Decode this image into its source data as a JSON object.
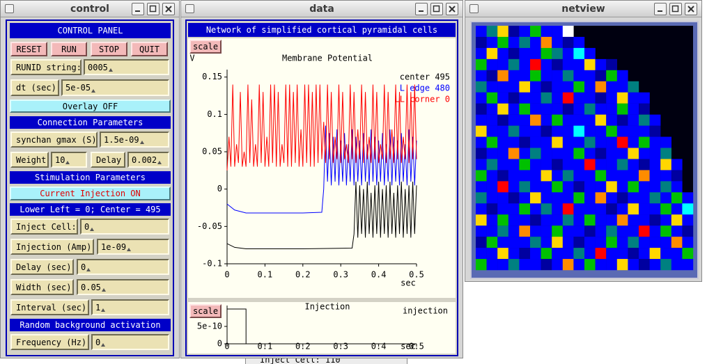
{
  "windows": {
    "control": {
      "title": "control"
    },
    "data": {
      "title": "data"
    },
    "netview": {
      "title": "netview"
    }
  },
  "control_panel": {
    "title": "CONTROL PANEL",
    "buttons": [
      "RESET",
      "RUN",
      "STOP",
      "QUIT"
    ],
    "runid": {
      "label": "RUNID string:",
      "value": "0005"
    },
    "dt": {
      "label": "dt (sec)",
      "value": "5e-05"
    },
    "overlay": "Overlay OFF",
    "connection": {
      "heading": "Connection Parameters",
      "gmax": {
        "label": "synchan gmax (S)",
        "value": "1.5e-09"
      },
      "weight": {
        "label": "Weight",
        "value": "10"
      },
      "delay": {
        "label": "Delay",
        "value": "0.002"
      }
    },
    "stimulation": {
      "heading": "Stimulation Parameters",
      "injection_toggle": "Current Injection ON",
      "note": "Lower Left = 0; Center = 495",
      "inject_cell": {
        "label": "Inject Cell:",
        "value": "0"
      },
      "injection": {
        "label": "Injection (Amp)",
        "value": "1e-09"
      },
      "delay": {
        "label": "Delay (sec)",
        "value": "0"
      },
      "width": {
        "label": "Width (sec)",
        "value": "0.05"
      },
      "interval": {
        "label": "Interval (sec)",
        "value": "1"
      }
    },
    "background": {
      "heading": "Random background activation",
      "frequency": {
        "label": "Frequency (Hz)",
        "value": "0"
      }
    }
  },
  "data_window": {
    "header": "Network of simplified cortical pyramidal cells",
    "scale_buttons": [
      "scale",
      "scale"
    ]
  },
  "chart_data": [
    {
      "type": "line",
      "title": "Membrane Potential",
      "ylabel": "V",
      "xlabel": "sec",
      "xlim": [
        0,
        0.5
      ],
      "ylim": [
        -0.1,
        0.16
      ],
      "xticks": [
        0,
        0.1,
        0.2,
        0.3,
        0.4,
        0.5
      ],
      "yticks": [
        -0.1,
        -0.05,
        0,
        0.05,
        0.1,
        0.15
      ],
      "series": [
        {
          "name": "center 495",
          "color": "#000000",
          "x": [
            0,
            0.02,
            0.05,
            0.1,
            0.2,
            0.33,
            0.335,
            0.34,
            0.345,
            0.35,
            0.355,
            0.36,
            0.365,
            0.37,
            0.375,
            0.38,
            0.385,
            0.39,
            0.395,
            0.4,
            0.405,
            0.41,
            0.415,
            0.42,
            0.425,
            0.43,
            0.435,
            0.44,
            0.445,
            0.45,
            0.455,
            0.46,
            0.465,
            0.47,
            0.475,
            0.48,
            0.485,
            0.49,
            0.495,
            0.5
          ],
          "values": [
            -0.073,
            -0.078,
            -0.08,
            -0.08,
            -0.08,
            -0.079,
            -0.06,
            0.01,
            -0.065,
            0.005,
            -0.06,
            0,
            -0.065,
            0.01,
            -0.06,
            -0.005,
            -0.065,
            0.005,
            -0.06,
            0.01,
            -0.065,
            0,
            -0.06,
            0.005,
            -0.065,
            0.01,
            -0.06,
            -0.005,
            -0.065,
            0.005,
            -0.06,
            0.01,
            -0.065,
            0,
            -0.06,
            0.005,
            -0.065,
            0.01,
            -0.06,
            0.005
          ]
        },
        {
          "name": "L edge 480",
          "color": "#0000ff",
          "x": [
            0,
            0.02,
            0.05,
            0.1,
            0.2,
            0.25,
            0.255,
            0.26,
            0.265,
            0.27,
            0.275,
            0.28,
            0.285,
            0.29,
            0.295,
            0.3,
            0.305,
            0.31,
            0.315,
            0.32,
            0.325,
            0.33,
            0.335,
            0.34,
            0.345,
            0.35,
            0.355,
            0.36,
            0.365,
            0.37,
            0.375,
            0.38,
            0.385,
            0.39,
            0.395,
            0.4,
            0.405,
            0.41,
            0.415,
            0.42,
            0.425,
            0.43,
            0.435,
            0.44,
            0.445,
            0.45,
            0.455,
            0.46,
            0.465,
            0.47,
            0.475,
            0.48,
            0.485,
            0.49,
            0.495,
            0.5
          ],
          "values": [
            -0.02,
            -0.028,
            -0.032,
            -0.032,
            -0.032,
            -0.031,
            0,
            0.085,
            0.01,
            0.075,
            0.005,
            0.07,
            0.01,
            0.08,
            0.005,
            0.065,
            0.01,
            0.075,
            0.005,
            0.06,
            0.01,
            0.08,
            0.005,
            0.07,
            0.01,
            0.065,
            0.005,
            0.075,
            0.01,
            0.06,
            0.005,
            0.08,
            0.01,
            0.07,
            0.005,
            0.065,
            0.01,
            0.075,
            0.005,
            0.06,
            0.01,
            0.08,
            0.005,
            0.07,
            0.01,
            0.065,
            0.005,
            0.075,
            0.01,
            0.06,
            0.005,
            0.08,
            0.01,
            0.07,
            0.005,
            0.065
          ]
        },
        {
          "name": "LL corner 0",
          "color": "#ff0000",
          "x": [
            0,
            0.005,
            0.01,
            0.015,
            0.02,
            0.025,
            0.03,
            0.035,
            0.04,
            0.045,
            0.05,
            0.055,
            0.06,
            0.065,
            0.07,
            0.075,
            0.08,
            0.085,
            0.09,
            0.095,
            0.1,
            0.105,
            0.11,
            0.115,
            0.12,
            0.125,
            0.13,
            0.135,
            0.14,
            0.145,
            0.15,
            0.155,
            0.16,
            0.165,
            0.17,
            0.175,
            0.18,
            0.185,
            0.19,
            0.195,
            0.2,
            0.205,
            0.21,
            0.215,
            0.22,
            0.225,
            0.23,
            0.235,
            0.24,
            0.245,
            0.25,
            0.255,
            0.26,
            0.265,
            0.27,
            0.275,
            0.28,
            0.285,
            0.29,
            0.295,
            0.3,
            0.305,
            0.31,
            0.315,
            0.32,
            0.325,
            0.33,
            0.335,
            0.34,
            0.345,
            0.35,
            0.355,
            0.36,
            0.365,
            0.37,
            0.375,
            0.38,
            0.385,
            0.39,
            0.395,
            0.4,
            0.405,
            0.41,
            0.415,
            0.42,
            0.425,
            0.43,
            0.435,
            0.44,
            0.445,
            0.45,
            0.455,
            0.46,
            0.465,
            0.47,
            0.475,
            0.48,
            0.485,
            0.49,
            0.495,
            0.5
          ],
          "values": [
            0.025,
            0.07,
            0.03,
            0.14,
            0.03,
            0.06,
            0.035,
            0.13,
            0.03,
            0.05,
            0.03,
            0.14,
            0.035,
            0.12,
            0.03,
            0.06,
            0.03,
            0.14,
            0.035,
            0.13,
            0.03,
            0.07,
            0.03,
            0.14,
            0.035,
            0.14,
            0.03,
            0.13,
            0.03,
            0.06,
            0.035,
            0.14,
            0.03,
            0.14,
            0.03,
            0.13,
            0.035,
            0.14,
            0.03,
            0.08,
            0.03,
            0.14,
            0.035,
            0.14,
            0.03,
            0.13,
            0.03,
            0.14,
            0.035,
            0.14,
            0.04,
            0.09,
            0.035,
            0.14,
            0.04,
            0.13,
            0.035,
            0.07,
            0.04,
            0.14,
            0.035,
            0.13,
            0.04,
            0.06,
            0.035,
            0.14,
            0.04,
            0.13,
            0.035,
            0.08,
            0.04,
            0.14,
            0.035,
            0.13,
            0.04,
            0.07,
            0.035,
            0.14,
            0.04,
            0.13,
            0.035,
            0.06,
            0.04,
            0.14,
            0.035,
            0.13,
            0.04,
            0.08,
            0.035,
            0.14,
            0.04,
            0.13,
            0.035,
            0.07,
            0.04,
            0.14,
            0.035,
            0.13,
            0.04,
            0.14,
            0.04
          ]
        }
      ]
    },
    {
      "type": "line",
      "title": "Injection",
      "xlabel": "sec",
      "xlim": [
        0,
        0.5
      ],
      "ylim": [
        0,
        1.1e-09
      ],
      "xticks": [
        0,
        0.1,
        0.2,
        0.3,
        0.4,
        0.5
      ],
      "yticks": [
        0,
        {
          "value": 5e-10,
          "label": "5e-10"
        }
      ],
      "series": [
        {
          "name": "injection",
          "color": "#000000",
          "x": [
            0,
            0,
            0.05,
            0.05,
            0.5
          ],
          "values": [
            0,
            1e-09,
            1e-09,
            0,
            0
          ]
        }
      ]
    }
  ],
  "netview": {
    "palette": [
      "#0000ff",
      "#0000a0",
      "#00c000",
      "#008080",
      "#ffd700",
      "#ff8c00",
      "#ff0000",
      "#00ffff",
      "#ffffff"
    ],
    "cells": [
      [
        0,
        3,
        4,
        1,
        0,
        2,
        0,
        0,
        8
      ],
      [
        1,
        0,
        2,
        0,
        3,
        0,
        5,
        0,
        1,
        0
      ],
      [
        0,
        4,
        0,
        1,
        0,
        0,
        2,
        3,
        0,
        7,
        0
      ],
      [
        2,
        0,
        0,
        3,
        0,
        6,
        0,
        1,
        0,
        0,
        4,
        0,
        1
      ],
      [
        0,
        1,
        5,
        0,
        0,
        2,
        0,
        0,
        3,
        0,
        0,
        1,
        2,
        0
      ],
      [
        3,
        0,
        0,
        0,
        4,
        0,
        1,
        0,
        0,
        2,
        0,
        5,
        0,
        0,
        3
      ],
      [
        0,
        2,
        0,
        1,
        0,
        0,
        3,
        0,
        6,
        0,
        0,
        1,
        0,
        4,
        0,
        0
      ],
      [
        1,
        0,
        4,
        0,
        2,
        0,
        0,
        0,
        1,
        0,
        3,
        0,
        0,
        2,
        0,
        1
      ],
      [
        0,
        0,
        1,
        0,
        0,
        5,
        0,
        2,
        0,
        0,
        0,
        4,
        0,
        1,
        0,
        3,
        0
      ],
      [
        4,
        0,
        0,
        3,
        0,
        0,
        1,
        0,
        0,
        7,
        0,
        0,
        2,
        0,
        0,
        0,
        1
      ],
      [
        0,
        2,
        0,
        0,
        1,
        0,
        0,
        4,
        0,
        0,
        3,
        0,
        0,
        6,
        0,
        2,
        0,
        0
      ],
      [
        1,
        0,
        0,
        5,
        0,
        3,
        0,
        0,
        0,
        2,
        0,
        1,
        0,
        0,
        4,
        0,
        0,
        3
      ],
      [
        0,
        3,
        0,
        0,
        2,
        0,
        0,
        1,
        0,
        0,
        6,
        0,
        0,
        3,
        0,
        1,
        0,
        4,
        0
      ],
      [
        2,
        0,
        1,
        0,
        0,
        0,
        4,
        0,
        3,
        0,
        0,
        2,
        0,
        0,
        0,
        5,
        0,
        0,
        1
      ],
      [
        0,
        0,
        6,
        0,
        3,
        0,
        0,
        2,
        0,
        1,
        0,
        0,
        4,
        0,
        2,
        0,
        0,
        3,
        0
      ],
      [
        3,
        0,
        0,
        1,
        0,
        4,
        0,
        0,
        0,
        2,
        0,
        5,
        0,
        1,
        0,
        0,
        3,
        0,
        2,
        0
      ],
      [
        0,
        1,
        0,
        0,
        2,
        0,
        3,
        0,
        6,
        0,
        0,
        0,
        1,
        0,
        4,
        0,
        0,
        2,
        0,
        7
      ],
      [
        4,
        0,
        2,
        0,
        0,
        1,
        0,
        0,
        3,
        0,
        2,
        0,
        0,
        5,
        0,
        0,
        1,
        0,
        4,
        0
      ],
      [
        0,
        0,
        3,
        0,
        5,
        0,
        0,
        2,
        0,
        0,
        1,
        0,
        3,
        0,
        0,
        6,
        0,
        2,
        0,
        1
      ],
      [
        1,
        2,
        0,
        0,
        0,
        3,
        0,
        4,
        0,
        1,
        0,
        0,
        2,
        0,
        3,
        0,
        0,
        0,
        5,
        0
      ],
      [
        0,
        0,
        4,
        0,
        1,
        0,
        2,
        0,
        0,
        3,
        0,
        6,
        0,
        0,
        1,
        0,
        4,
        0,
        0,
        2
      ],
      [
        2,
        0,
        0,
        3,
        0,
        0,
        1,
        0,
        5,
        0,
        2,
        0,
        0,
        4,
        0,
        1,
        0,
        3,
        0,
        0
      ]
    ]
  },
  "background_window": {
    "text": "Inject Cell: 110"
  }
}
